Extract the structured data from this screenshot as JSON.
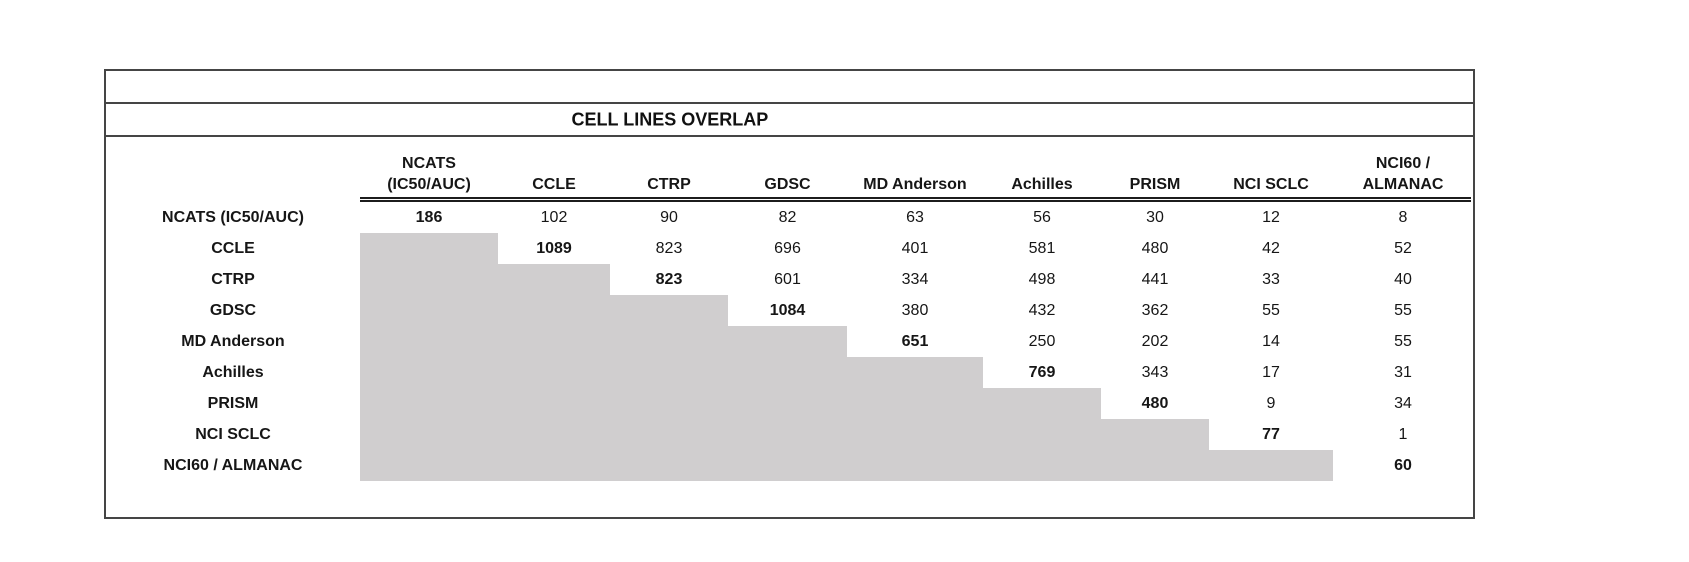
{
  "table": {
    "title": "CELL LINES OVERLAP",
    "headers": [
      {
        "name": "NCATS (IC50/AUC)",
        "lines": [
          "NCATS",
          "(IC50/AUC)"
        ]
      },
      {
        "name": "CCLE",
        "lines": [
          "CCLE"
        ]
      },
      {
        "name": "CTRP",
        "lines": [
          "CTRP"
        ]
      },
      {
        "name": "GDSC",
        "lines": [
          "GDSC"
        ]
      },
      {
        "name": "MD Anderson",
        "lines": [
          "MD Anderson"
        ]
      },
      {
        "name": "Achilles",
        "lines": [
          "Achilles"
        ]
      },
      {
        "name": "PRISM",
        "lines": [
          "PRISM"
        ]
      },
      {
        "name": "NCI SCLC",
        "lines": [
          "NCI SCLC"
        ]
      },
      {
        "name": "NCI60 / ALMANAC",
        "lines": [
          "NCI60 /",
          "ALMANAC"
        ]
      }
    ],
    "rows": [
      {
        "label": "NCATS (IC50/AUC)",
        "values": [
          186,
          102,
          90,
          82,
          63,
          56,
          30,
          12,
          8
        ]
      },
      {
        "label": "CCLE",
        "values": [
          null,
          1089,
          823,
          696,
          401,
          581,
          480,
          42,
          52
        ]
      },
      {
        "label": "CTRP",
        "values": [
          null,
          null,
          823,
          601,
          334,
          498,
          441,
          33,
          40
        ]
      },
      {
        "label": "GDSC",
        "values": [
          null,
          null,
          null,
          1084,
          380,
          432,
          362,
          55,
          55
        ]
      },
      {
        "label": "MD Anderson",
        "values": [
          null,
          null,
          null,
          null,
          651,
          250,
          202,
          14,
          55
        ]
      },
      {
        "label": "Achilles",
        "values": [
          null,
          null,
          null,
          null,
          null,
          769,
          343,
          17,
          31
        ]
      },
      {
        "label": "PRISM",
        "values": [
          null,
          null,
          null,
          null,
          null,
          null,
          480,
          9,
          34
        ]
      },
      {
        "label": "NCI SCLC",
        "values": [
          null,
          null,
          null,
          null,
          null,
          null,
          null,
          77,
          1
        ]
      },
      {
        "label": "NCI60 / ALMANAC",
        "values": [
          null,
          null,
          null,
          null,
          null,
          null,
          null,
          null,
          60
        ]
      }
    ],
    "notes": {
      "diagonal_bold": "Diagonal cells (dataset vs itself) are bold",
      "shaded_lower_triangle": "Lower-triangle cells are shaded gray and empty"
    },
    "colors": {
      "shaded_cell": "#d0cecf",
      "border": "#454545",
      "text": "#161616"
    }
  }
}
